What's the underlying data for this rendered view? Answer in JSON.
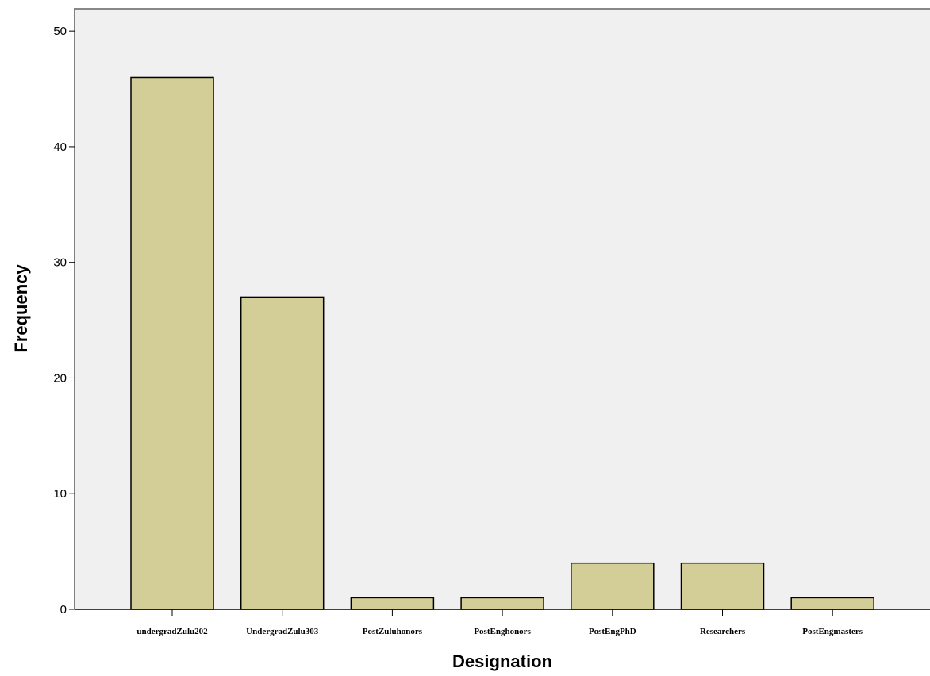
{
  "chart_data": {
    "type": "bar",
    "categories": [
      "undergradZulu202",
      "UndergradZulu303",
      "PostZuluhonors",
      "PostEnghonors",
      "PostEngPhD",
      "Researchers",
      "PostEngmasters"
    ],
    "values": [
      46,
      27,
      1,
      1,
      4,
      4,
      1
    ],
    "title": "",
    "xlabel": "Designation",
    "ylabel": "Frequency",
    "ylim": [
      0,
      52
    ],
    "yticks": [
      0,
      10,
      20,
      30,
      40,
      50
    ],
    "grid": false,
    "colors": {
      "plot_background": "#f0f0f0",
      "bar_fill": "#d3ce97",
      "bar_stroke": "#000000",
      "frame": "#888888"
    }
  }
}
